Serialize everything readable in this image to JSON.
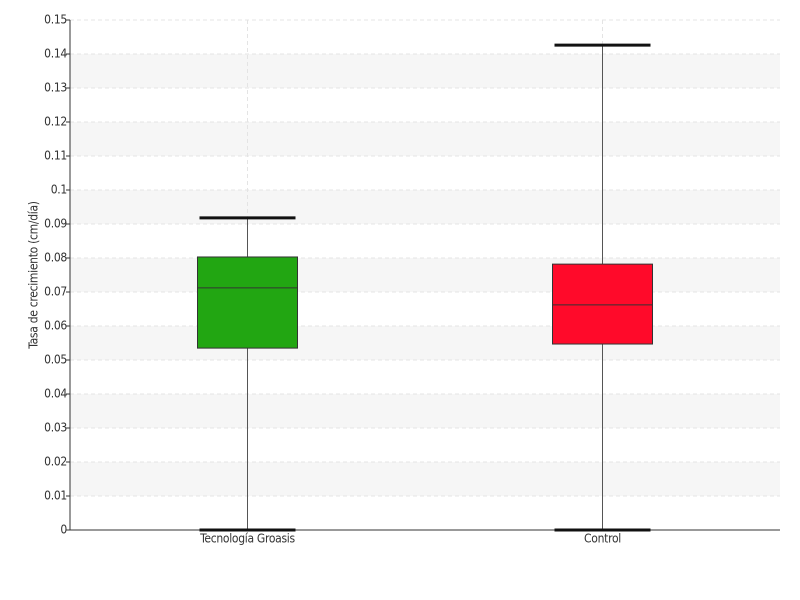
{
  "chart_data": {
    "type": "box",
    "y_label": "Tasa de crecimiento (cm/día)",
    "categories": [
      "Tecnología Groasis",
      "Control"
    ],
    "boxes": [
      {
        "min": 0,
        "q1": 0.0535,
        "median": 0.0712,
        "q3": 0.0803,
        "max": 0.0918,
        "color": "#22a612"
      },
      {
        "min": 0,
        "q1": 0.0547,
        "median": 0.0662,
        "q3": 0.0782,
        "max": 0.1426,
        "color": "#ff0a2a"
      }
    ],
    "ylim": [
      0,
      0.15
    ],
    "yticks": [
      0,
      0.01,
      0.02,
      0.03,
      0.04,
      0.05,
      0.06,
      0.07,
      0.08,
      0.09,
      0.1,
      0.11,
      0.12,
      0.13,
      0.14,
      0.15
    ],
    "grid": true
  }
}
